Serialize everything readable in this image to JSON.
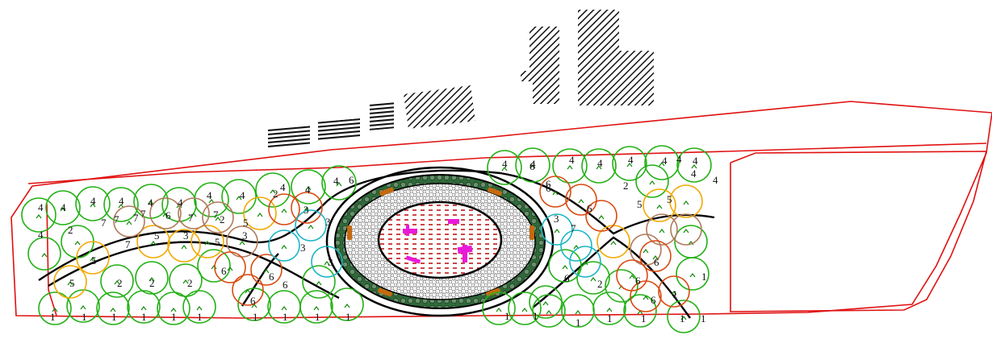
{
  "colors": {
    "boundary": "#e01010",
    "tree_green": "#22b014",
    "tree_dark": "#128a0a",
    "tree_orange": "#f2a900",
    "tree_brown": "#b07a5a",
    "tree_redorange": "#d84a10",
    "tree_cyan": "#1ab6c4",
    "path": "#000000",
    "gravel": "#8c8c8c",
    "hedge": "#2f6a3a",
    "bench": "#c46a10",
    "plaza_hatch": "#c01818",
    "feature_magenta": "#e81ad8",
    "building_hatch": "#111111"
  },
  "plant_labels": [
    {
      "row": "bottom",
      "numbers": [
        "1",
        "1",
        "1",
        "1",
        "1",
        "1",
        "1",
        "1",
        "1",
        "1",
        "1",
        "1",
        "1",
        "1",
        "1",
        "1",
        "1"
      ]
    },
    {
      "row": "lower-mid",
      "numbers": [
        "5",
        "2",
        "2",
        "2",
        "6",
        "6",
        "6",
        "6",
        "3",
        "6",
        "1",
        "2",
        "6",
        "6",
        "6",
        "1"
      ]
    },
    {
      "row": "middle",
      "numbers": [
        "4",
        "2",
        "7",
        "5",
        "7",
        "5",
        "3",
        "5",
        "2",
        "5",
        "7",
        "6",
        "3",
        "3",
        "3",
        "3",
        "2",
        "6",
        "7",
        "3",
        "6",
        "5",
        "5"
      ]
    },
    {
      "row": "top",
      "numbers": [
        "4",
        "4",
        "4",
        "4",
        "4",
        "4",
        "4",
        "4",
        "4",
        "4",
        "6",
        "4",
        "4",
        "4",
        "4",
        "4",
        "4",
        "4",
        "4",
        "4",
        "6",
        "6",
        "7",
        "7",
        "7",
        "7",
        "2",
        "4",
        "4"
      ]
    }
  ],
  "icons": [
    "building-hatch",
    "tree-canopy",
    "shrub-mark",
    "bench",
    "fountain-feature"
  ]
}
